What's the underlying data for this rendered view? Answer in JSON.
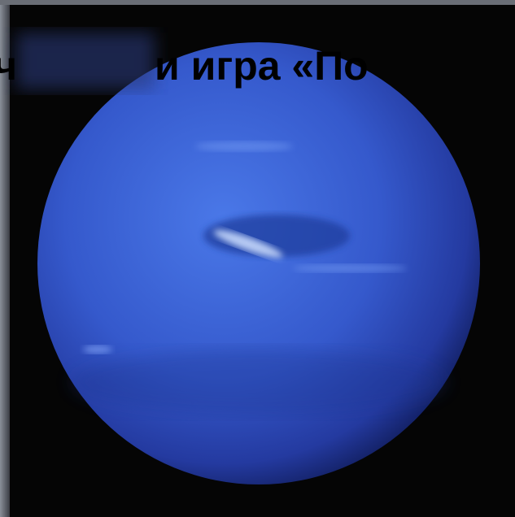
{
  "caption": {
    "fragment_left": "ч",
    "fragment_main": "и игра «По"
  }
}
